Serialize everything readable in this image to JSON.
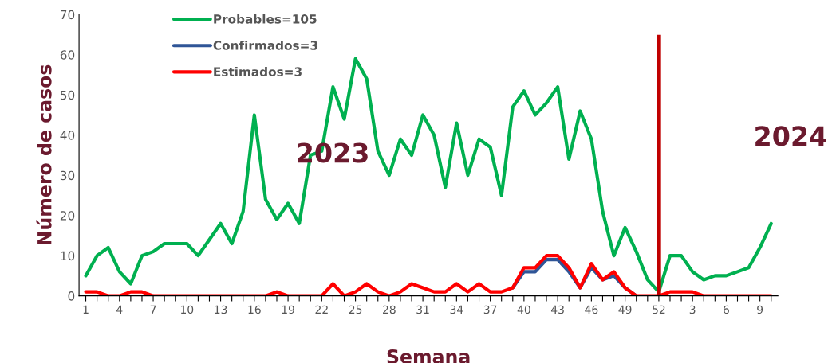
{
  "chart_data": {
    "type": "line",
    "xlabel": "Semana",
    "ylabel": "Número de casos",
    "categories": [
      "1",
      null,
      null,
      "4",
      null,
      null,
      "7",
      null,
      null,
      "10",
      null,
      null,
      "13",
      null,
      null,
      "16",
      null,
      null,
      "19",
      null,
      null,
      "22",
      null,
      null,
      "25",
      null,
      null,
      "28",
      null,
      null,
      "31",
      null,
      null,
      "34",
      null,
      null,
      "37",
      null,
      null,
      "40",
      null,
      null,
      "43",
      null,
      null,
      "46",
      null,
      null,
      "49",
      null,
      null,
      "52",
      null,
      null,
      "3",
      null,
      null,
      "6",
      null,
      null,
      "9",
      null
    ],
    "series": [
      {
        "name": "Probables=105",
        "color": "#00b050",
        "values": [
          5,
          10,
          12,
          6,
          3,
          10,
          11,
          13,
          13,
          13,
          10,
          14,
          18,
          13,
          21,
          45,
          24,
          19,
          23,
          18,
          35,
          36,
          52,
          44,
          59,
          54,
          36,
          30,
          39,
          35,
          45,
          40,
          27,
          43,
          30,
          39,
          37,
          25,
          47,
          51,
          45,
          48,
          52,
          34,
          46,
          39,
          21,
          10,
          17,
          11,
          4,
          1,
          10,
          10,
          6,
          4,
          5,
          5,
          6,
          7,
          12,
          18
        ]
      },
      {
        "name": "Confirmados=3",
        "color": "#2f5597",
        "values": [
          null,
          null,
          null,
          null,
          null,
          null,
          null,
          null,
          null,
          null,
          null,
          null,
          null,
          null,
          null,
          null,
          null,
          null,
          null,
          null,
          null,
          null,
          null,
          null,
          null,
          null,
          null,
          null,
          null,
          null,
          null,
          null,
          null,
          null,
          null,
          null,
          null,
          null,
          2,
          6,
          6,
          9,
          9,
          6,
          2,
          7,
          4,
          5,
          2,
          0,
          null,
          null,
          null,
          null,
          null,
          null,
          null,
          null,
          null,
          null,
          null,
          null
        ]
      },
      {
        "name": "Estimados=3",
        "color": "#ff0000",
        "values": [
          1,
          1,
          0,
          0,
          1,
          1,
          0,
          0,
          0,
          0,
          0,
          0,
          0,
          0,
          0,
          0,
          0,
          1,
          0,
          0,
          0,
          0,
          3,
          0,
          1,
          3,
          1,
          0,
          1,
          3,
          2,
          1,
          1,
          3,
          1,
          3,
          1,
          1,
          2,
          7,
          7,
          10,
          10,
          7,
          2,
          8,
          4,
          6,
          2,
          0,
          0,
          0,
          1,
          1,
          1,
          0,
          0,
          0,
          0,
          0,
          0,
          0
        ]
      }
    ],
    "ylim": [
      0,
      70
    ],
    "yticks": [
      0,
      10,
      20,
      30,
      40,
      50,
      60,
      70
    ],
    "grid": false,
    "legend": "top left",
    "marker": "none",
    "line_style": "solid",
    "ref_lines": [
      {
        "axis": "x",
        "value": "52",
        "color": "#c00000"
      }
    ],
    "annotations": [
      "2023",
      "2024"
    ]
  }
}
